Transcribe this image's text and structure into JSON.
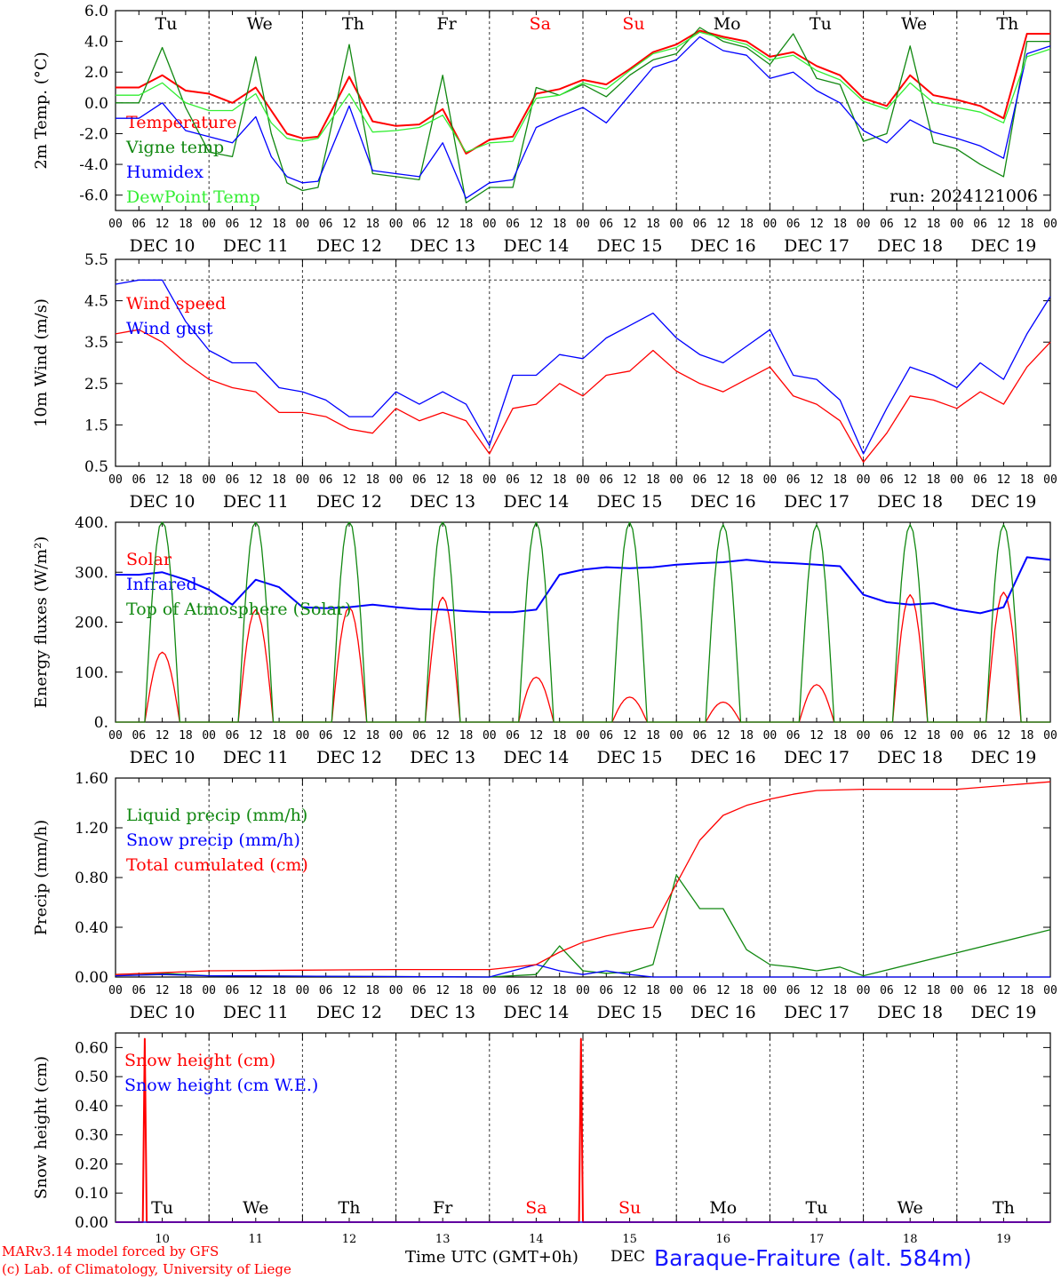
{
  "run_label": "run: 2024121006",
  "colors": {
    "red": "#ff0000",
    "darkgreen": "#118811",
    "blue": "#0000ff",
    "lightgreen": "#33ee33"
  },
  "days": [
    "DEC 10",
    "DEC 11",
    "DEC 12",
    "DEC 13",
    "DEC 14",
    "DEC 15",
    "DEC 16",
    "DEC 17",
    "DEC 18",
    "DEC 19"
  ],
  "hour_ticks": [
    "00",
    "06",
    "12",
    "18"
  ],
  "weekdays": [
    {
      "label": "Tu",
      "color": "#000000"
    },
    {
      "label": "We",
      "color": "#000000"
    },
    {
      "label": "Th",
      "color": "#000000"
    },
    {
      "label": "Fr",
      "color": "#000000"
    },
    {
      "label": "Sa",
      "color": "#ff0000"
    },
    {
      "label": "Su",
      "color": "#ff0000"
    },
    {
      "label": "Mo",
      "color": "#000000"
    },
    {
      "label": "Tu",
      "color": "#000000"
    },
    {
      "label": "We",
      "color": "#000000"
    },
    {
      "label": "Th",
      "color": "#000000"
    }
  ],
  "bottom_day_numbers": [
    "10",
    "11",
    "12",
    "13",
    "14",
    "15",
    "16",
    "17",
    "18",
    "19"
  ],
  "footer": {
    "left1": "MARv3.14 model forced by GFS",
    "left2": "(c) Lab. of Climatology, University of Liege",
    "axis": "Time UTC (GMT+0h)",
    "dec": "DEC",
    "station": "Baraque-Fraiture (alt. 584m)"
  },
  "chart_data": [
    {
      "type": "line",
      "ylabel": "2m Temp. (°C)",
      "ylim": [
        -7.0,
        6.0
      ],
      "yticks": [
        "6.0",
        "4.0",
        "2.0",
        "0.0",
        "-2.0",
        "-4.0",
        "-6.0"
      ],
      "ytick_values": [
        6,
        4,
        2,
        0,
        -2,
        -4,
        -6
      ],
      "ref_line": 0,
      "series": [
        {
          "name": "Temperature",
          "color": "#ff0000",
          "t": [
            0,
            6,
            12,
            18,
            24,
            30,
            36,
            40,
            44,
            48,
            52,
            60,
            66,
            72,
            78,
            84,
            90,
            96,
            102,
            108,
            114,
            120,
            126,
            132,
            138,
            144,
            150,
            156,
            162,
            168,
            174,
            180,
            186,
            192,
            198,
            204,
            210,
            216,
            222,
            228,
            234,
            240
          ],
          "y": [
            1.0,
            1.0,
            1.8,
            0.8,
            0.6,
            0.0,
            1.0,
            -0.5,
            -2.0,
            -2.3,
            -2.2,
            1.7,
            -1.2,
            -1.5,
            -1.4,
            -0.4,
            -3.3,
            -2.4,
            -2.2,
            0.6,
            0.9,
            1.5,
            1.2,
            2.2,
            3.3,
            3.8,
            4.7,
            4.3,
            4.0,
            3.0,
            3.3,
            2.4,
            1.8,
            0.3,
            -0.2,
            1.8,
            0.5,
            0.2,
            -0.2,
            -1.0,
            4.5,
            4.5
          ]
        },
        {
          "name": "Vigne temp",
          "color": "#118811",
          "t": [
            0,
            6,
            12,
            18,
            24,
            30,
            36,
            40,
            44,
            48,
            52,
            60,
            66,
            72,
            78,
            84,
            90,
            96,
            102,
            108,
            114,
            120,
            126,
            132,
            138,
            144,
            150,
            156,
            162,
            168,
            174,
            180,
            186,
            192,
            198,
            204,
            210,
            216,
            222,
            228,
            234,
            240
          ],
          "y": [
            0.0,
            0.0,
            3.6,
            -0.3,
            -3.2,
            -3.5,
            3.0,
            -2.0,
            -5.2,
            -5.7,
            -5.5,
            3.8,
            -4.6,
            -4.8,
            -5.0,
            1.8,
            -6.5,
            -5.5,
            -5.5,
            1.0,
            0.5,
            1.2,
            0.4,
            1.8,
            2.8,
            3.2,
            4.9,
            4.0,
            3.6,
            2.5,
            4.5,
            1.6,
            1.2,
            -2.5,
            -2.0,
            3.7,
            -2.6,
            -3.0,
            -4.0,
            -4.8,
            4.0,
            4.0
          ]
        },
        {
          "name": "Humidex",
          "color": "#0000ff",
          "t": [
            0,
            6,
            12,
            18,
            24,
            30,
            36,
            40,
            44,
            48,
            52,
            60,
            66,
            72,
            78,
            84,
            90,
            96,
            102,
            108,
            114,
            120,
            126,
            132,
            138,
            144,
            150,
            156,
            162,
            168,
            174,
            180,
            186,
            192,
            198,
            204,
            210,
            216,
            222,
            228,
            234,
            240
          ],
          "y": [
            -1.0,
            -1.0,
            0.0,
            -1.8,
            -2.2,
            -2.6,
            -0.9,
            -3.5,
            -4.8,
            -5.2,
            -5.1,
            -0.2,
            -4.4,
            -4.6,
            -4.8,
            -2.6,
            -6.2,
            -5.2,
            -5.0,
            -1.6,
            -0.9,
            -0.3,
            -1.3,
            0.5,
            2.3,
            2.8,
            4.3,
            3.4,
            3.1,
            1.6,
            2.0,
            0.8,
            0.0,
            -1.8,
            -2.6,
            -1.1,
            -1.9,
            -2.3,
            -2.8,
            -3.6,
            3.2,
            3.7
          ]
        },
        {
          "name": "DewPoint Temp",
          "color": "#33ee33",
          "t": [
            0,
            6,
            12,
            18,
            24,
            30,
            36,
            40,
            44,
            48,
            52,
            60,
            66,
            72,
            78,
            84,
            90,
            96,
            102,
            108,
            114,
            120,
            126,
            132,
            138,
            144,
            150,
            156,
            162,
            168,
            174,
            180,
            186,
            192,
            198,
            204,
            210,
            216,
            222,
            228,
            234,
            240
          ],
          "y": [
            0.5,
            0.5,
            1.3,
            0.0,
            -0.5,
            -0.5,
            0.6,
            -1.3,
            -2.3,
            -2.5,
            -2.3,
            0.6,
            -1.9,
            -1.8,
            -1.6,
            -0.8,
            -3.2,
            -2.6,
            -2.5,
            0.3,
            0.5,
            1.3,
            0.9,
            2.1,
            3.2,
            3.6,
            4.6,
            4.2,
            3.8,
            2.8,
            3.1,
            2.1,
            1.5,
            0.1,
            -0.4,
            1.3,
            0.0,
            -0.3,
            -0.6,
            -1.3,
            3.0,
            3.5
          ]
        }
      ]
    },
    {
      "type": "line",
      "ylabel": "10m Wind (m/s)",
      "ylim": [
        0.5,
        5.5
      ],
      "yticks": [
        "5.5",
        "4.5",
        "3.5",
        "2.5",
        "1.5",
        "0.5"
      ],
      "ytick_values": [
        5.5,
        4.5,
        3.5,
        2.5,
        1.5,
        0.5
      ],
      "ref_line": 5.0,
      "series": [
        {
          "name": "Wind speed",
          "color": "#ff0000",
          "t": [
            0,
            6,
            12,
            18,
            24,
            30,
            36,
            42,
            48,
            54,
            60,
            66,
            72,
            78,
            84,
            90,
            96,
            102,
            108,
            114,
            120,
            126,
            132,
            138,
            144,
            150,
            156,
            162,
            168,
            174,
            180,
            186,
            192,
            198,
            204,
            210,
            216,
            222,
            228,
            234,
            240
          ],
          "y": [
            3.7,
            3.8,
            3.5,
            3.0,
            2.6,
            2.4,
            2.3,
            1.8,
            1.8,
            1.7,
            1.4,
            1.3,
            1.9,
            1.6,
            1.8,
            1.6,
            0.8,
            1.9,
            2.0,
            2.5,
            2.2,
            2.7,
            2.8,
            3.3,
            2.8,
            2.5,
            2.3,
            2.6,
            2.9,
            2.2,
            2.0,
            1.6,
            0.6,
            1.3,
            2.2,
            2.1,
            1.9,
            2.3,
            2.0,
            2.9,
            3.5
          ]
        },
        {
          "name": "Wind gust",
          "color": "#0000ff",
          "t": [
            0,
            6,
            12,
            18,
            24,
            30,
            36,
            42,
            48,
            54,
            60,
            66,
            72,
            78,
            84,
            90,
            96,
            102,
            108,
            114,
            120,
            126,
            132,
            138,
            144,
            150,
            156,
            162,
            168,
            174,
            180,
            186,
            192,
            198,
            204,
            210,
            216,
            222,
            228,
            234,
            240
          ],
          "y": [
            4.9,
            5.0,
            5.0,
            4.0,
            3.3,
            3.0,
            3.0,
            2.4,
            2.3,
            2.1,
            1.7,
            1.7,
            2.3,
            2.0,
            2.3,
            2.0,
            1.0,
            2.7,
            2.7,
            3.2,
            3.1,
            3.6,
            3.9,
            4.2,
            3.6,
            3.2,
            3.0,
            3.4,
            3.8,
            2.7,
            2.6,
            2.1,
            0.8,
            1.9,
            2.9,
            2.7,
            2.4,
            3.0,
            2.6,
            3.7,
            4.6
          ]
        }
      ]
    },
    {
      "type": "line",
      "ylabel": "Energy fluxes (W/m²)",
      "ylim": [
        0,
        400
      ],
      "yticks": [
        "400.",
        "300.",
        "200.",
        "100.",
        "0."
      ],
      "ytick_values": [
        400,
        300,
        200,
        100,
        0
      ],
      "series": [
        {
          "name": "Solar",
          "color": "#ff0000",
          "peaks": [
            140,
            225,
            230,
            250,
            90,
            50,
            40,
            75,
            255,
            260
          ]
        },
        {
          "name": "Infrared",
          "color": "#0000ff",
          "t": [
            0,
            6,
            12,
            18,
            24,
            30,
            36,
            42,
            48,
            54,
            60,
            66,
            72,
            78,
            84,
            90,
            96,
            102,
            108,
            114,
            120,
            126,
            132,
            138,
            144,
            150,
            156,
            162,
            168,
            174,
            180,
            186,
            192,
            198,
            204,
            210,
            216,
            222,
            228,
            234,
            240
          ],
          "y": [
            295,
            295,
            300,
            285,
            265,
            235,
            285,
            270,
            230,
            228,
            230,
            235,
            230,
            226,
            225,
            222,
            220,
            220,
            225,
            295,
            305,
            310,
            308,
            310,
            315,
            318,
            320,
            325,
            320,
            318,
            315,
            312,
            255,
            240,
            235,
            238,
            225,
            218,
            230,
            330,
            325
          ]
        },
        {
          "name": "Top of Atmosphere (Solar)",
          "color": "#118811",
          "peaks": [
            405,
            405,
            405,
            405,
            400,
            400,
            395,
            395,
            395,
            395
          ]
        }
      ]
    },
    {
      "type": "line",
      "ylabel": "Precip (mm/h)",
      "ylim": [
        0,
        1.6
      ],
      "yticks": [
        "1.60",
        "1.20",
        "0.80",
        "0.40",
        "0.00"
      ],
      "ytick_values": [
        1.6,
        1.2,
        0.8,
        0.4,
        0.0
      ],
      "series": [
        {
          "name": "Liquid precip (mm/h)",
          "color": "#118811",
          "t": [
            0,
            12,
            24,
            96,
            108,
            114,
            120,
            126,
            132,
            138,
            144,
            150,
            156,
            162,
            168,
            174,
            180,
            186,
            192,
            240
          ],
          "y": [
            0.02,
            0.03,
            0.01,
            0.0,
            0.02,
            0.25,
            0.05,
            0.03,
            0.04,
            0.1,
            0.82,
            0.55,
            0.55,
            0.22,
            0.1,
            0.08,
            0.05,
            0.08,
            0.01,
            0.38
          ]
        },
        {
          "name": "Snow precip (mm/h)",
          "color": "#0000ff",
          "t": [
            0,
            12,
            24,
            96,
            108,
            114,
            120,
            126,
            132,
            138,
            144,
            240
          ],
          "y": [
            0.01,
            0.02,
            0.01,
            0.0,
            0.1,
            0.05,
            0.02,
            0.05,
            0.02,
            0.0,
            0.0,
            0.0
          ]
        },
        {
          "name": "Total cumulated (cm)",
          "color": "#ff0000",
          "t": [
            0,
            24,
            48,
            72,
            96,
            108,
            114,
            120,
            126,
            132,
            138,
            144,
            150,
            156,
            162,
            168,
            174,
            180,
            192,
            216,
            240
          ],
          "y": [
            0.02,
            0.05,
            0.055,
            0.06,
            0.06,
            0.1,
            0.2,
            0.28,
            0.33,
            0.37,
            0.4,
            0.75,
            1.1,
            1.3,
            1.38,
            1.43,
            1.47,
            1.5,
            1.51,
            1.51,
            1.57
          ]
        }
      ]
    },
    {
      "type": "line",
      "ylabel": "Snow height (cm)",
      "ylim": [
        0.0,
        0.65
      ],
      "yticks": [
        "0.60",
        "0.50",
        "0.40",
        "0.30",
        "0.20",
        "0.10",
        "0.00"
      ],
      "ytick_values": [
        0.6,
        0.5,
        0.4,
        0.3,
        0.2,
        0.1,
        0.0
      ],
      "series": [
        {
          "name": "Snow height (cm)",
          "color": "#ff0000",
          "t": [
            0,
            7,
            7.5,
            8,
            119,
            119.5,
            120,
            240
          ],
          "y": [
            0,
            0,
            0.63,
            0,
            0,
            0.63,
            0,
            0
          ]
        },
        {
          "name": "Snow height (cm W.E.)",
          "color": "#0000ff",
          "t": [
            0,
            240
          ],
          "y": [
            0,
            0
          ]
        }
      ]
    }
  ]
}
